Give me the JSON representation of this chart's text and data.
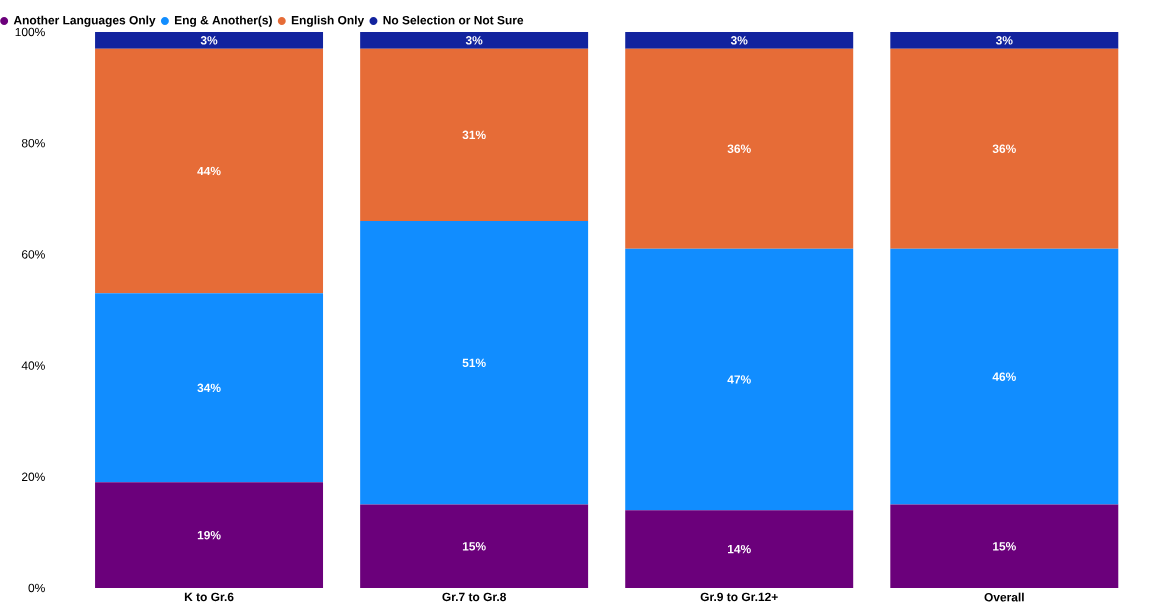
{
  "chart_data": {
    "type": "bar",
    "stacked": true,
    "categories": [
      "K to Gr.6",
      "Gr.7 to Gr.8",
      "Gr.9 to Gr.12+",
      "Overall"
    ],
    "series": [
      {
        "name": "Another Languages Only",
        "color": "#6b007b",
        "values": [
          19,
          15,
          14,
          15
        ],
        "value_labels": [
          "19%",
          "15%",
          "14%",
          "15%"
        ]
      },
      {
        "name": "Eng & Another(s)",
        "color": "#118dff",
        "values": [
          34,
          51,
          47,
          46
        ],
        "value_labels": [
          "34%",
          "51%",
          "47%",
          "46%"
        ]
      },
      {
        "name": "English Only",
        "color": "#e66c37",
        "values": [
          44,
          31,
          36,
          36
        ],
        "value_labels": [
          "44%",
          "31%",
          "36%",
          "36%"
        ]
      },
      {
        "name": "No Selection or Not Sure",
        "color": "#12239e",
        "values": [
          3,
          3,
          3,
          3
        ],
        "value_labels": [
          "3%",
          "3%",
          "3%",
          "3%"
        ]
      }
    ],
    "ylim": [
      0,
      100
    ],
    "yticks": [
      {
        "value": 0,
        "label": "0%"
      },
      {
        "value": 20,
        "label": "20%"
      },
      {
        "value": 40,
        "label": "40%"
      },
      {
        "value": 60,
        "label": "60%"
      },
      {
        "value": 80,
        "label": "80%"
      },
      {
        "value": 100,
        "label": "100%"
      }
    ],
    "grid": false,
    "legend": "top left",
    "marker": "circle"
  }
}
